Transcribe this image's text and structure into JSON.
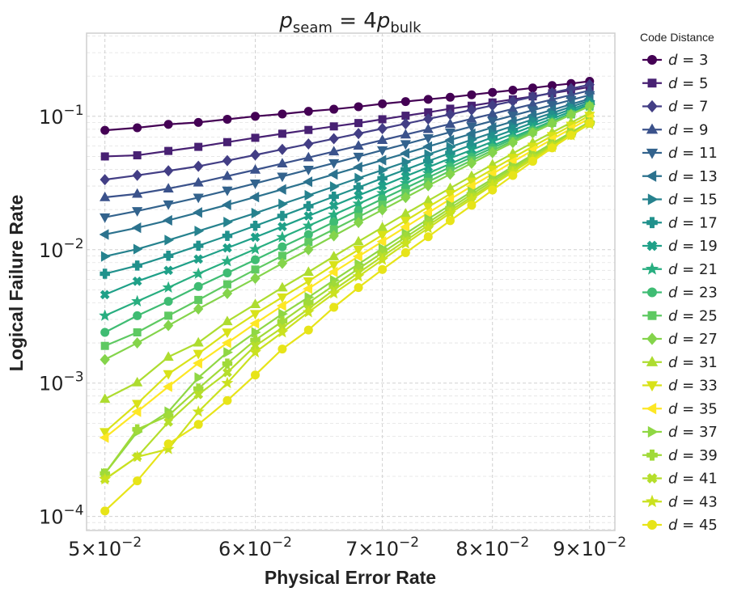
{
  "chart_data": {
    "type": "line",
    "title": "p_seam = 4p_bulk",
    "title_parts": {
      "var_main": "p",
      "sub_left": "seam",
      "equals": " = 4",
      "var_main2": "p",
      "sub_right": "bulk"
    },
    "xlabel": "Physical Error Rate",
    "ylabel": "Logical Failure Rate",
    "xscale": "log",
    "yscale": "log",
    "xlim": [
      0.0489,
      0.0928
    ],
    "ylim": [
      7.85e-05,
      0.42
    ],
    "grid": true,
    "x_ticks": [
      {
        "value": 0.05,
        "mant": "5",
        "exp": "−2"
      },
      {
        "value": 0.06,
        "mant": "6",
        "exp": "−2"
      },
      {
        "value": 0.07,
        "mant": "7",
        "exp": "−2"
      },
      {
        "value": 0.08,
        "mant": "8",
        "exp": "−2"
      },
      {
        "value": 0.09,
        "mant": "9",
        "exp": "−2"
      }
    ],
    "y_ticks": [
      {
        "value": 0.1,
        "base": "10",
        "exp": "−1"
      },
      {
        "value": 0.01,
        "base": "10",
        "exp": "−2"
      },
      {
        "value": 0.001,
        "base": "10",
        "exp": "−3"
      },
      {
        "value": 0.0001,
        "base": "10",
        "exp": "−4"
      }
    ],
    "x": [
      0.05,
      0.052,
      0.054,
      0.056,
      0.058,
      0.06,
      0.062,
      0.064,
      0.066,
      0.068,
      0.07,
      0.072,
      0.074,
      0.076,
      0.078,
      0.08,
      0.082,
      0.084,
      0.086,
      0.088,
      0.09
    ],
    "legend": {
      "title": "Code Distance",
      "position": "outside-right"
    },
    "series": [
      {
        "name": "d = 3",
        "d": "3",
        "marker": "circle",
        "color": "#440154",
        "values": [
          0.0785,
          0.082,
          0.087,
          0.09,
          0.095,
          0.1,
          0.104,
          0.109,
          0.113,
          0.118,
          0.124,
          0.129,
          0.134,
          0.139,
          0.145,
          0.151,
          0.157,
          0.163,
          0.17,
          0.176,
          0.183
        ]
      },
      {
        "name": "d = 5",
        "d": "5",
        "marker": "square",
        "color": "#482173",
        "values": [
          0.05,
          0.051,
          0.055,
          0.059,
          0.064,
          0.069,
          0.074,
          0.079,
          0.084,
          0.089,
          0.095,
          0.101,
          0.107,
          0.114,
          0.12,
          0.127,
          0.134,
          0.141,
          0.149,
          0.157,
          0.166
        ]
      },
      {
        "name": "d = 7",
        "d": "7",
        "marker": "diamond",
        "color": "#433E85",
        "values": [
          0.0335,
          0.0361,
          0.039,
          0.0422,
          0.0465,
          0.0513,
          0.0565,
          0.062,
          0.0679,
          0.0742,
          0.0809,
          0.088,
          0.0955,
          0.1034,
          0.1117,
          0.1206,
          0.1299,
          0.1398,
          0.1502,
          0.1612,
          0.1727
        ]
      },
      {
        "name": "d = 9",
        "d": "9",
        "marker": "triangle-up",
        "color": "#3B528B",
        "values": [
          0.0247,
          0.0262,
          0.0287,
          0.0318,
          0.0356,
          0.0397,
          0.0442,
          0.0491,
          0.0544,
          0.0601,
          0.0663,
          0.0729,
          0.08,
          0.0876,
          0.0957,
          0.1043,
          0.1135,
          0.1233,
          0.1336,
          0.1446,
          0.1562
        ]
      },
      {
        "name": "d = 11",
        "d": "11",
        "marker": "triangle-down",
        "color": "#33638D",
        "values": [
          0.0175,
          0.0195,
          0.0219,
          0.0246,
          0.0278,
          0.0314,
          0.0354,
          0.0398,
          0.0446,
          0.0499,
          0.0557,
          0.0619,
          0.0687,
          0.076,
          0.0838,
          0.0923,
          0.1013,
          0.1111,
          0.1214,
          0.1325,
          0.1443
        ]
      },
      {
        "name": "d = 13",
        "d": "13",
        "marker": "triangle-left",
        "color": "#2C728E",
        "values": [
          0.013,
          0.0146,
          0.0166,
          0.019,
          0.0217,
          0.0248,
          0.0283,
          0.0323,
          0.0367,
          0.0416,
          0.0469,
          0.0528,
          0.0593,
          0.0664,
          0.074,
          0.0824,
          0.0914,
          0.1012,
          0.1117,
          0.123,
          0.1352
        ]
      },
      {
        "name": "d = 15",
        "d": "15",
        "marker": "triangle-right",
        "color": "#26828E",
        "values": [
          0.0089,
          0.0101,
          0.0118,
          0.0138,
          0.0161,
          0.0188,
          0.022,
          0.0256,
          0.0297,
          0.0344,
          0.0396,
          0.0454,
          0.0518,
          0.0589,
          0.0667,
          0.0753,
          0.0846,
          0.0948,
          0.1059,
          0.1179,
          0.1309
        ]
      },
      {
        "name": "d = 17",
        "d": "17",
        "marker": "plus",
        "color": "#21918C",
        "values": [
          0.0066,
          0.0076,
          0.009,
          0.0107,
          0.0127,
          0.0151,
          0.0179,
          0.0212,
          0.025,
          0.0293,
          0.0343,
          0.0399,
          0.0461,
          0.0531,
          0.0609,
          0.0695,
          0.0789,
          0.0893,
          0.1006,
          0.113,
          0.1264
        ]
      },
      {
        "name": "d = 19",
        "d": "19",
        "marker": "x",
        "color": "#1FA088",
        "values": [
          0.0046,
          0.0058,
          0.007,
          0.0085,
          0.0103,
          0.0124,
          0.0149,
          0.0179,
          0.0214,
          0.0255,
          0.0301,
          0.0355,
          0.0415,
          0.0484,
          0.056,
          0.0646,
          0.074,
          0.0845,
          0.096,
          0.1087,
          0.1226
        ]
      },
      {
        "name": "d = 21",
        "d": "21",
        "marker": "star",
        "color": "#28AE80",
        "values": [
          0.0032,
          0.0041,
          0.0052,
          0.0066,
          0.0082,
          0.0101,
          0.0124,
          0.0151,
          0.0183,
          0.0221,
          0.0265,
          0.0316,
          0.0374,
          0.0441,
          0.0517,
          0.0602,
          0.0697,
          0.0803,
          0.092,
          0.105,
          0.1193
        ]
      },
      {
        "name": "d = 23",
        "d": "23",
        "marker": "circle",
        "color": "#3FBC73",
        "values": [
          0.0024,
          0.0032,
          0.0041,
          0.0053,
          0.0067,
          0.0084,
          0.0105,
          0.013,
          0.0161,
          0.0197,
          0.024,
          0.029,
          0.0348,
          0.0415,
          0.0492,
          0.0579,
          0.0677,
          0.0787,
          0.0909,
          0.1044,
          0.1192
        ]
      },
      {
        "name": "d = 25",
        "d": "25",
        "marker": "square",
        "color": "#5EC962",
        "values": [
          0.0019,
          0.0024,
          0.0032,
          0.0042,
          0.0055,
          0.0071,
          0.009,
          0.0114,
          0.0142,
          0.0176,
          0.0217,
          0.0266,
          0.0323,
          0.039,
          0.0467,
          0.0555,
          0.0655,
          0.0767,
          0.0893,
          0.1034,
          0.119
        ]
      },
      {
        "name": "d = 27",
        "d": "27",
        "marker": "diamond",
        "color": "#84D44B",
        "values": [
          0.0015,
          0.002,
          0.0027,
          0.0036,
          0.0047,
          0.0061,
          0.0079,
          0.01,
          0.0127,
          0.016,
          0.0199,
          0.0246,
          0.0302,
          0.0368,
          0.0445,
          0.0534,
          0.0636,
          0.0752,
          0.0883,
          0.103,
          0.1195
        ]
      },
      {
        "name": "d = 31",
        "d": "31",
        "marker": "triangle-up",
        "color": "#ADDC30",
        "values": [
          0.00076,
          0.00101,
          0.00157,
          0.00201,
          0.0029,
          0.0039,
          0.0052,
          0.0068,
          0.0089,
          0.0115,
          0.0147,
          0.0186,
          0.0233,
          0.0289,
          0.0356,
          0.0435,
          0.0527,
          0.0634,
          0.0757,
          0.0897,
          0.1057
        ]
      },
      {
        "name": "d = 33",
        "d": "33",
        "marker": "triangle-down",
        "color": "#D8E219",
        "values": [
          0.00043,
          0.0007,
          0.00117,
          0.00166,
          0.0024,
          0.0033,
          0.0044,
          0.0058,
          0.0077,
          0.01,
          0.0129,
          0.0165,
          0.0209,
          0.0262,
          0.0325,
          0.04,
          0.0489,
          0.0593,
          0.0713,
          0.0852,
          0.1011
        ]
      },
      {
        "name": "d = 35",
        "d": "35",
        "marker": "triangle-left",
        "color": "#FDE725",
        "values": [
          0.00039,
          0.00061,
          0.00094,
          0.00141,
          0.002,
          0.0028,
          0.0038,
          0.0051,
          0.0068,
          0.0089,
          0.0115,
          0.0148,
          0.0189,
          0.0239,
          0.0299,
          0.037,
          0.0456,
          0.0556,
          0.0673,
          0.0809,
          0.0965
        ]
      },
      {
        "name": "d = 37",
        "d": "37",
        "marker": "triangle-right",
        "color": "#8FD744",
        "values": [
          0.00021,
          0.00043,
          0.00061,
          0.0011,
          0.0017,
          0.0024,
          0.0033,
          0.0044,
          0.0059,
          0.0078,
          0.0102,
          0.0132,
          0.017,
          0.0216,
          0.0272,
          0.0339,
          0.042,
          0.0515,
          0.0627,
          0.0757,
          0.0908
        ]
      },
      {
        "name": "d = 39",
        "d": "39",
        "marker": "plus",
        "color": "#A0DA39",
        "values": [
          0.00021,
          0.00045,
          0.00057,
          0.00091,
          0.0014,
          0.0021,
          0.0029,
          0.004,
          0.0054,
          0.0072,
          0.0095,
          0.0124,
          0.016,
          0.0205,
          0.026,
          0.0327,
          0.0407,
          0.0502,
          0.0614,
          0.0745,
          0.0897
        ]
      },
      {
        "name": "d = 41",
        "d": "41",
        "marker": "x",
        "color": "#B5DE2B",
        "values": [
          0.00019,
          0.00028,
          0.00051,
          0.00082,
          0.0012,
          0.0019,
          0.0026,
          0.0036,
          0.005,
          0.0067,
          0.0089,
          0.0117,
          0.0152,
          0.0196,
          0.0249,
          0.0315,
          0.0394,
          0.0489,
          0.0601,
          0.0733,
          0.0886
        ]
      },
      {
        "name": "d = 43",
        "d": "43",
        "marker": "star",
        "color": "#CAE11F",
        "values": [
          0.00019,
          0.00028,
          0.00032,
          0.00061,
          0.001,
          0.0017,
          0.0024,
          0.0034,
          0.0047,
          0.0063,
          0.0084,
          0.0111,
          0.0145,
          0.0188,
          0.024,
          0.0305,
          0.0383,
          0.0477,
          0.0589,
          0.0721,
          0.0875
        ]
      },
      {
        "name": "d = 45",
        "d": "45",
        "marker": "circle",
        "color": "#E7E419",
        "values": [
          0.00011,
          0.000185,
          0.00035,
          0.00049,
          0.00074,
          0.00115,
          0.0018,
          0.0025,
          0.0037,
          0.0052,
          0.0071,
          0.0095,
          0.0125,
          0.0165,
          0.0215,
          0.028,
          0.036,
          0.046,
          0.058,
          0.072,
          0.089
        ]
      }
    ]
  }
}
